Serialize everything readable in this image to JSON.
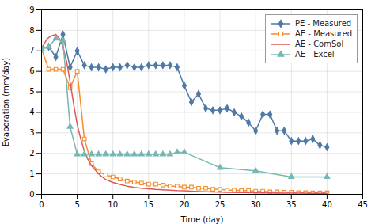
{
  "chart_data": {
    "type": "line",
    "xlabel": "Time (day)",
    "ylabel": "Evaporation (mm/day)",
    "xlim": [
      0,
      45
    ],
    "ylim": [
      0.0,
      9.0
    ],
    "xticks": [
      0,
      5,
      10,
      15,
      20,
      25,
      30,
      35,
      40,
      45
    ],
    "yticks": [
      0,
      1,
      2,
      3,
      4,
      5,
      6,
      7,
      8,
      9
    ],
    "grid": true,
    "legend": "upper right",
    "series": [
      {
        "name": "PE - Measured",
        "marker": "diamond",
        "line_style": "solid",
        "x": [
          0,
          1,
          2,
          3,
          4,
          5,
          6,
          7,
          8,
          9,
          10,
          11,
          12,
          13,
          14,
          15,
          16,
          17,
          18,
          19,
          20,
          21,
          22,
          23,
          24,
          25,
          26,
          27,
          28,
          29,
          30,
          31,
          32,
          33,
          34,
          35,
          36,
          37,
          38,
          39,
          40
        ],
        "values": [
          7.1,
          7.2,
          6.7,
          7.8,
          6.2,
          7.0,
          6.3,
          6.2,
          6.2,
          6.1,
          6.2,
          6.2,
          6.3,
          6.2,
          6.2,
          6.3,
          6.3,
          6.3,
          6.3,
          6.2,
          5.3,
          4.5,
          4.9,
          4.2,
          4.1,
          4.1,
          4.2,
          4.0,
          3.8,
          3.5,
          3.1,
          3.9,
          3.9,
          3.1,
          3.1,
          2.6,
          2.6,
          2.6,
          2.7,
          2.4,
          2.3
        ]
      },
      {
        "name": "AE - Measured",
        "marker": "square",
        "line_style": "solid",
        "x": [
          0,
          1,
          2,
          3,
          4,
          5,
          6,
          7,
          8,
          9,
          10,
          11,
          12,
          13,
          14,
          15,
          16,
          17,
          18,
          19,
          20,
          21,
          22,
          23,
          24,
          25,
          26,
          27,
          28,
          29,
          30,
          31,
          32,
          33,
          34,
          35,
          36,
          37,
          38,
          39,
          40
        ],
        "values": [
          7.1,
          6.1,
          6.1,
          6.1,
          5.2,
          6.0,
          2.7,
          1.5,
          1.1,
          0.95,
          0.85,
          0.75,
          0.65,
          0.6,
          0.55,
          0.5,
          0.5,
          0.45,
          0.4,
          0.4,
          0.35,
          0.35,
          0.3,
          0.3,
          0.25,
          0.25,
          0.2,
          0.2,
          0.18,
          0.18,
          0.15,
          0.15,
          0.12,
          0.12,
          0.1,
          0.1,
          0.08,
          0.08,
          0.07,
          0.07,
          0.07
        ]
      },
      {
        "name": "AE - ComSol",
        "line_style": "solid",
        "x": [
          0,
          0.3,
          0.7,
          1.0,
          1.5,
          2.0,
          2.5,
          3.0,
          3.5,
          4.0,
          4.5,
          5.0,
          5.5,
          6.0,
          6.5,
          7.0,
          7.5,
          8.0,
          8.5,
          9.0,
          10.0,
          11.0,
          12.0,
          13.0,
          14.0,
          15.0,
          16.0,
          17.0,
          18.0,
          19.0,
          20.0,
          22.0,
          24.0,
          26.0,
          28.0,
          30.0,
          32.0,
          34.0,
          36.0,
          38.0,
          40.0
        ],
        "values": [
          7.1,
          7.3,
          7.55,
          7.65,
          7.75,
          7.8,
          7.6,
          7.2,
          6.5,
          5.5,
          4.4,
          3.4,
          2.7,
          2.1,
          1.7,
          1.4,
          1.2,
          1.0,
          0.85,
          0.72,
          0.58,
          0.48,
          0.4,
          0.34,
          0.3,
          0.27,
          0.24,
          0.22,
          0.2,
          0.18,
          0.17,
          0.14,
          0.12,
          0.1,
          0.09,
          0.08,
          0.07,
          0.06,
          0.055,
          0.05,
          0.045
        ]
      },
      {
        "name": "AE - Excel",
        "marker": "triangle",
        "line_style": "solid",
        "x": [
          0,
          1,
          2,
          3,
          4,
          5,
          6,
          7,
          8,
          9,
          10,
          11,
          12,
          13,
          14,
          15,
          16,
          17,
          18,
          19,
          20,
          25,
          30,
          35,
          40
        ],
        "values": [
          7.1,
          7.2,
          7.6,
          7.5,
          3.3,
          1.95,
          1.95,
          1.95,
          1.95,
          1.95,
          1.95,
          1.95,
          1.95,
          1.95,
          1.95,
          1.95,
          1.95,
          1.95,
          1.95,
          2.05,
          2.05,
          1.3,
          1.15,
          0.85,
          0.85
        ]
      }
    ]
  }
}
